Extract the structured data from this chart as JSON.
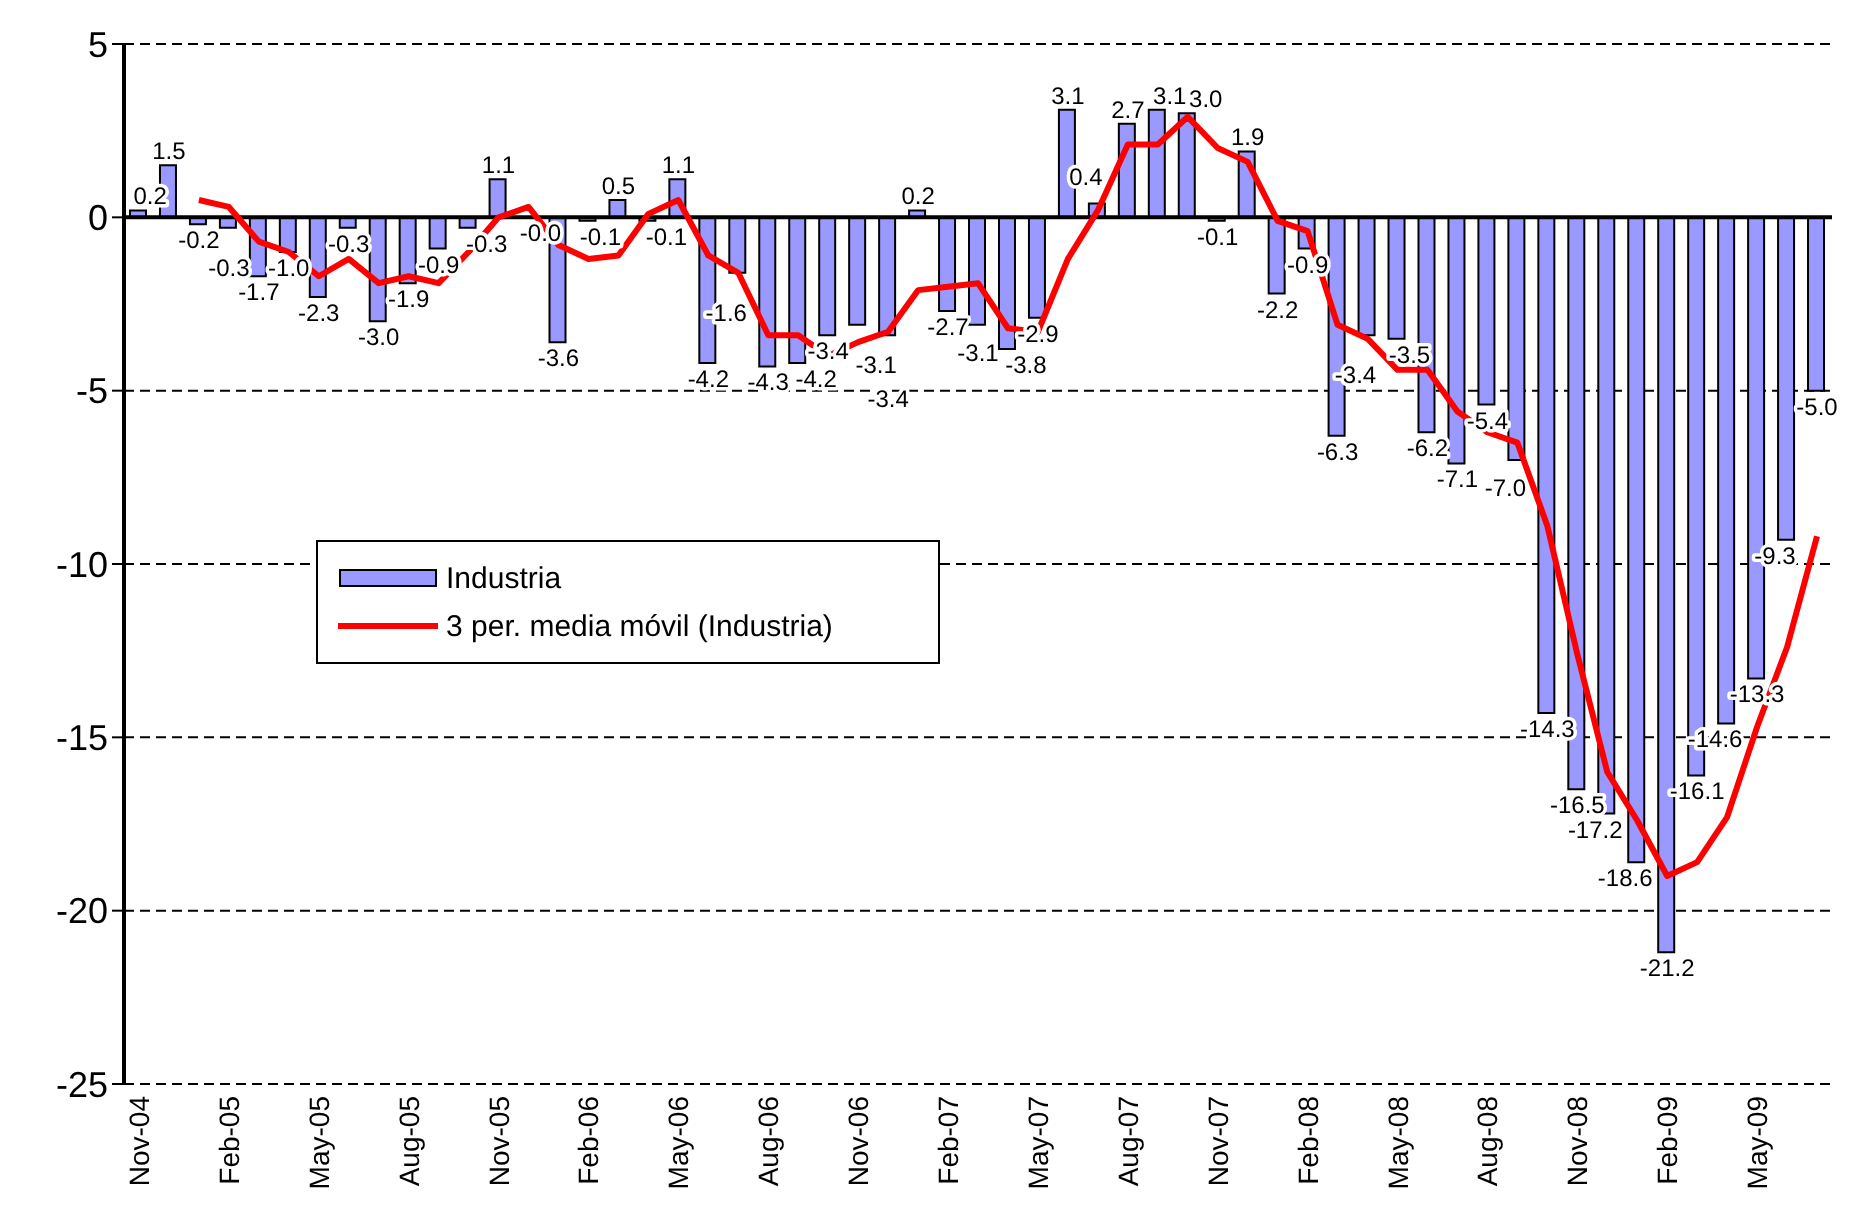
{
  "chart_data": {
    "type": "bar",
    "categories": [
      "Nov-04",
      null,
      null,
      "Feb-05",
      null,
      null,
      "May-05",
      null,
      null,
      "Aug-05",
      null,
      null,
      "Nov-05",
      null,
      null,
      "Feb-06",
      null,
      null,
      "May-06",
      null,
      null,
      "Aug-06",
      null,
      null,
      "Nov-06",
      null,
      null,
      "Feb-07",
      null,
      null,
      "May-07",
      null,
      null,
      "Aug-07",
      null,
      null,
      "Nov-07",
      null,
      null,
      "Feb-08",
      null,
      null,
      "May-08",
      null,
      null,
      "Aug-08",
      null,
      null,
      "Nov-08",
      null,
      null,
      "Feb-09",
      null,
      null,
      "May-09",
      null,
      null
    ],
    "series": [
      {
        "name": "Industria",
        "color": "#9999ff",
        "value_labels": [
          "0.2",
          "1.5",
          "-0.2",
          "-0.3",
          "-1.7",
          "-1.0",
          "-2.3",
          "-0.3",
          "-3.0",
          "-1.9",
          "-0.9",
          "-0.3",
          "1.1",
          "-0.0",
          "-3.6",
          "-0.1",
          "0.5",
          "-0.1",
          "1.1",
          "-4.2",
          "-1.6",
          "-4.3",
          "-4.2",
          "-3.4",
          "-3.1",
          "-3.4",
          "0.2",
          "-2.7",
          "-3.1",
          "-3.8",
          "-2.9",
          "3.1",
          "0.4",
          "2.7",
          "3.1",
          "3.0",
          "-0.1",
          "1.9",
          "-2.2",
          "-0.9",
          "-6.3",
          "-3.4",
          "-3.5",
          "-6.2",
          "-7.1",
          "-5.4",
          "-7.0",
          "-14.3",
          "-16.5",
          "-17.2",
          "-18.6",
          "-21.2",
          "-16.1",
          "-14.6",
          "-13.3",
          "-9.3",
          "-5.0"
        ],
        "values": [
          0.2,
          1.5,
          -0.2,
          -0.3,
          -1.7,
          -1.0,
          -2.3,
          -0.3,
          -3.0,
          -1.9,
          -0.9,
          -0.3,
          1.1,
          -0.0,
          -3.6,
          -0.1,
          0.5,
          -0.1,
          1.1,
          -4.2,
          -1.6,
          -4.3,
          -4.2,
          -3.4,
          -3.1,
          -3.4,
          0.2,
          -2.7,
          -3.1,
          -3.8,
          -2.9,
          3.1,
          0.4,
          2.7,
          3.1,
          3.0,
          -0.1,
          1.9,
          -2.2,
          -0.9,
          -6.3,
          -3.4,
          -3.5,
          -6.2,
          -7.1,
          -5.4,
          -7.0,
          -14.3,
          -16.5,
          -17.2,
          -18.6,
          -21.2,
          -16.1,
          -14.6,
          -13.3,
          -9.3,
          -5.0
        ]
      },
      {
        "name": "3 per. media móvil (Industria)",
        "type": "line",
        "color": "#ff0000",
        "values": [
          null,
          null,
          0.5,
          0.3,
          -0.7,
          -1.0,
          -1.7,
          -1.2,
          -1.9,
          -1.7,
          -1.9,
          -1.0,
          0.0,
          0.3,
          -0.8,
          -1.2,
          -1.1,
          0.1,
          0.5,
          -1.1,
          -1.6,
          -3.4,
          -3.4,
          -4.0,
          -3.6,
          -3.3,
          -2.1,
          -2.0,
          -1.9,
          -3.2,
          -3.3,
          -1.2,
          0.2,
          2.1,
          2.1,
          2.9,
          2.0,
          1.6,
          -0.1,
          -0.4,
          -3.1,
          -3.5,
          -4.4,
          -4.4,
          -5.6,
          -6.2,
          -6.5,
          -8.9,
          -12.6,
          -16.0,
          -17.4,
          -19.0,
          -18.6,
          -17.3,
          -14.7,
          -12.4,
          -9.2
        ]
      }
    ],
    "ylim": [
      -25,
      5
    ],
    "yticks": [
      -25,
      -20,
      -15,
      -10,
      -5,
      0,
      5
    ],
    "grid": "y",
    "legend": "left"
  }
}
